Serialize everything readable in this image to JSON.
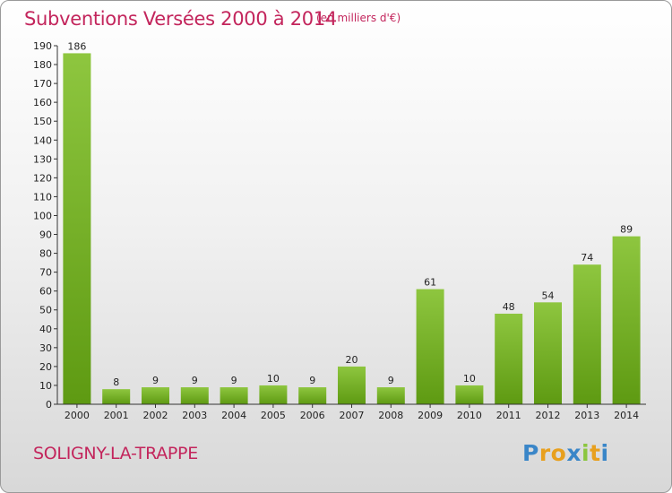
{
  "chart_data": {
    "type": "bar",
    "title": "Subventions Versées 2000 à 2014",
    "subtitle": "(en milliers d'€)",
    "categories": [
      "2000",
      "2001",
      "2002",
      "2003",
      "2004",
      "2005",
      "2006",
      "2007",
      "2008",
      "2009",
      "2010",
      "2011",
      "2012",
      "2013",
      "2014"
    ],
    "values": [
      186,
      8,
      9,
      9,
      9,
      10,
      9,
      20,
      9,
      61,
      10,
      48,
      54,
      74,
      89
    ],
    "ylim": [
      0,
      190
    ],
    "yticks": [
      0,
      10,
      20,
      30,
      40,
      50,
      60,
      70,
      80,
      90,
      100,
      110,
      120,
      130,
      140,
      150,
      160,
      170,
      180,
      190
    ],
    "grid": false,
    "bar_color_top": "#8ec63f",
    "bar_color_bottom": "#5e9a12"
  },
  "footer": {
    "commune": "SOLIGNY-LA-TRAPPE"
  },
  "logo": {
    "letters": [
      "P",
      "r",
      "o",
      "x",
      "i",
      "t",
      "i"
    ],
    "colors": [
      "#3a86c8",
      "#e8a01e",
      "#e8a01e",
      "#3a86c8",
      "#8cc63f",
      "#e8a01e",
      "#3a86c8"
    ]
  }
}
